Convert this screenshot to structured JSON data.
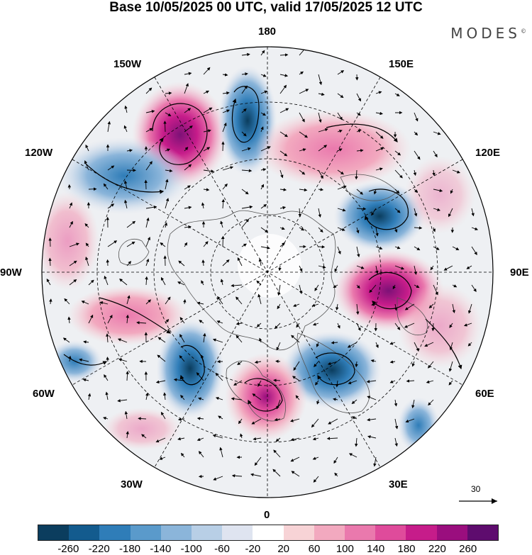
{
  "title": "Base 10/05/2025 00 UTC, valid 17/05/2025 12 UTC",
  "brand": "MODES",
  "brand_mark": "©",
  "longitude_labels": {
    "180": "180",
    "150E": "150E",
    "120E": "120E",
    "90E": "90E",
    "60E": "60E",
    "30E": "30E",
    "0": "0",
    "30W": "30W",
    "60W": "60W",
    "90W": "90W",
    "120W": "120W",
    "150W": "150W"
  },
  "reference_vector": {
    "value": "30"
  },
  "colorbar": {
    "labels": [
      "-260",
      "-220",
      "-180",
      "-140",
      "-100",
      "-60",
      "-20",
      "20",
      "60",
      "100",
      "140",
      "180",
      "220",
      "260"
    ],
    "colors": [
      "#0b3d5e",
      "#135b8e",
      "#2f7db8",
      "#5a9acb",
      "#8bb5da",
      "#b8cfe6",
      "#dfe4f0",
      "#ffffff",
      "#f7d3d6",
      "#f2a9bf",
      "#ea79ad",
      "#df4b9b",
      "#c61c8a",
      "#9a0e7e",
      "#5e0c6e"
    ]
  }
}
